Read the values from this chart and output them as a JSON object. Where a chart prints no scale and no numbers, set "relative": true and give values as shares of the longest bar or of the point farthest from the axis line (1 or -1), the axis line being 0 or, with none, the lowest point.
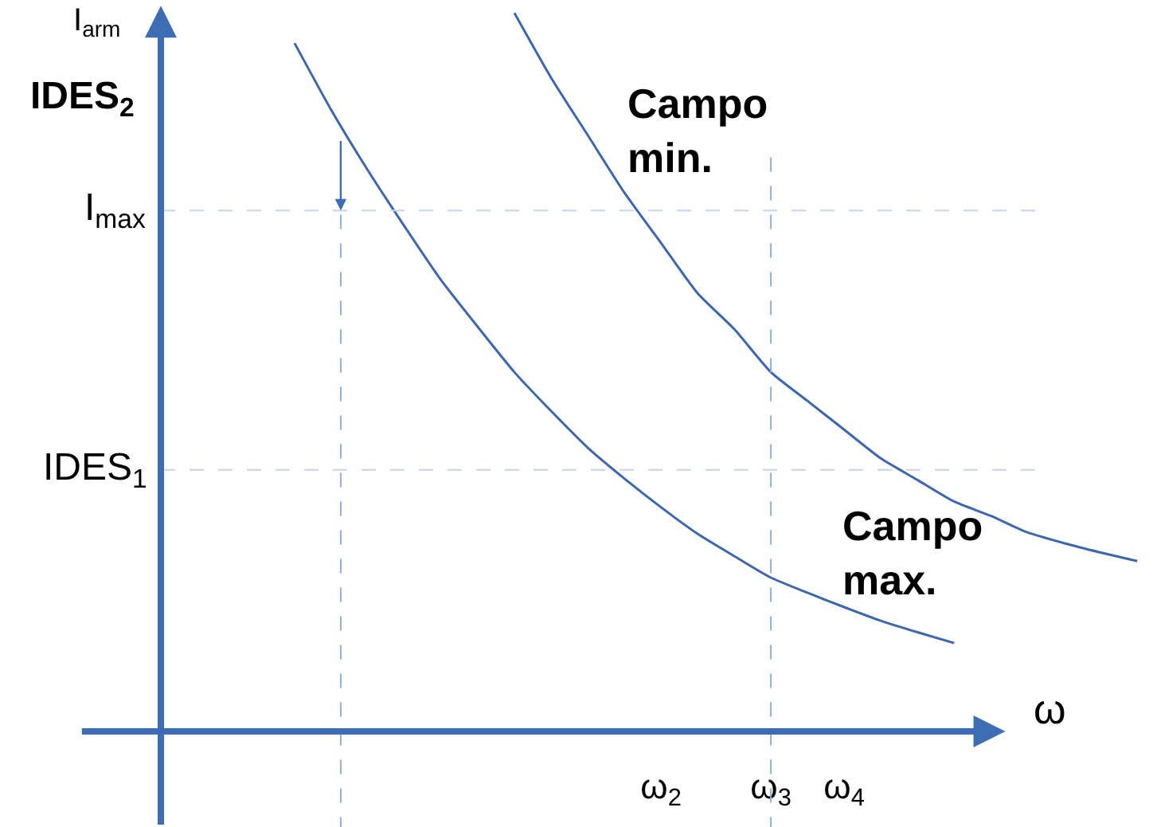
{
  "chart_data": {
    "type": "line",
    "relative": true,
    "ylabel": "I$_{arm}$",
    "xlabel": "ω",
    "legend": false,
    "grid": false,
    "marker": "none",
    "line_style": "solid",
    "categories": [
      null,
      null,
      null,
      null,
      null,
      null,
      null,
      null,
      null,
      null,
      null,
      "ω$_{2}$",
      null,
      null,
      "ω$_{3}$",
      null,
      "ω$_{4}$",
      null,
      null,
      null,
      null,
      null,
      null,
      null,
      null
    ],
    "series": [
      {
        "name": "Campo max.",
        "color": "#3c67ad",
        "values": [
          null,
          0.958,
          0.865,
          0.781,
          0.703,
          0.628,
          0.563,
          0.5,
          0.446,
          0.395,
          0.352,
          0.312,
          0.275,
          0.244,
          0.214,
          0.193,
          0.173,
          0.154,
          0.138,
          0.123,
          null,
          null,
          null,
          null,
          null
        ]
      },
      {
        "name": "Campo min.",
        "color": "#3c67ad",
        "values": [
          null,
          null,
          null,
          null,
          null,
          null,
          null,
          1.0,
          0.91,
          0.83,
          0.75,
          0.68,
          0.61,
          0.56,
          0.5,
          0.46,
          0.42,
          0.38,
          0.35,
          0.32,
          0.3,
          0.277,
          0.262,
          0.249,
          0.237
        ]
      }
    ],
    "ref_lines": [
      {
        "axis": "y",
        "value": 0.725,
        "label": "I$_{max}$",
        "color": "#c5d5ee",
        "line_style": "dashed"
      },
      {
        "axis": "y",
        "value": 0.364,
        "label": "IDES$_{1}$",
        "color": "#c5d5ee",
        "line_style": "dashed"
      },
      {
        "axis": "x",
        "value": "ω$_{3}$",
        "color": "#8fb0dd",
        "line_style": "dashed"
      }
    ],
    "annotations": [
      "IDES$_{2}$"
    ]
  }
}
